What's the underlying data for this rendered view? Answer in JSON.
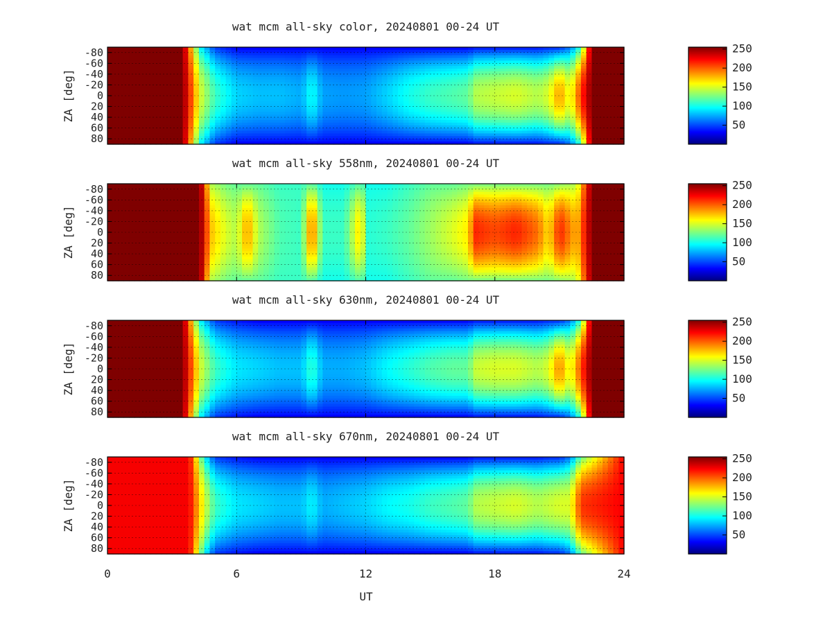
{
  "xlabel": "UT",
  "ylabel": "ZA [deg]",
  "x_ticks": [
    "0",
    "6",
    "12",
    "18",
    "24"
  ],
  "y_ticks": [
    "-80",
    "-60",
    "-40",
    "-20",
    "0",
    "20",
    "40",
    "60",
    "80"
  ],
  "colorbar_ticks": [
    "250",
    "200",
    "150",
    "100",
    "50"
  ],
  "colormap": "jet",
  "colors": {
    "jet_stops": [
      "#00007f",
      "#0000ff",
      "#007fff",
      "#00ffff",
      "#7fff7f",
      "#ffff00",
      "#ff7f00",
      "#ff0000",
      "#7f0000"
    ]
  },
  "chart_data": [
    {
      "type": "heatmap",
      "title": "wat mcm all-sky color, 20240801 00-24 UT",
      "xlabel": "",
      "ylabel": "ZA [deg]",
      "xlim": [
        0,
        24
      ],
      "ylim": [
        -90,
        90
      ],
      "zlim": [
        0,
        255
      ],
      "grid": true,
      "profile_ut": [
        0,
        3.5,
        4.3,
        5,
        6,
        7,
        8,
        9,
        9.5,
        10,
        11,
        12,
        13,
        14,
        15,
        16,
        16.8,
        17,
        18,
        19,
        20,
        20.5,
        21,
        21.5,
        22,
        22.5,
        24
      ],
      "zenith_value": [
        255,
        255,
        150,
        110,
        85,
        80,
        80,
        75,
        100,
        72,
        70,
        72,
        85,
        100,
        110,
        115,
        120,
        140,
        145,
        150,
        140,
        150,
        185,
        150,
        210,
        255,
        255
      ],
      "edge_value": [
        255,
        255,
        95,
        45,
        30,
        30,
        30,
        30,
        30,
        30,
        30,
        30,
        30,
        30,
        30,
        30,
        30,
        35,
        35,
        35,
        35,
        40,
        40,
        60,
        110,
        255,
        255
      ]
    },
    {
      "type": "heatmap",
      "title": "wat mcm all-sky 558nm, 20240801 00-24 UT",
      "xlabel": "",
      "ylabel": "ZA [deg]",
      "xlim": [
        0,
        24
      ],
      "ylim": [
        -90,
        90
      ],
      "zlim": [
        0,
        255
      ],
      "grid": true,
      "profile_ut": [
        0,
        4.3,
        4.8,
        5.5,
        6,
        6.5,
        7,
        8,
        9,
        9.5,
        10,
        11,
        11.8,
        12,
        13,
        14,
        15,
        16,
        16.8,
        17,
        18,
        19,
        20,
        20.5,
        21,
        21.8,
        22.5,
        24
      ],
      "zenith_value": [
        255,
        255,
        175,
        150,
        140,
        185,
        140,
        115,
        110,
        200,
        110,
        110,
        175,
        105,
        110,
        120,
        135,
        150,
        165,
        215,
        205,
        215,
        195,
        165,
        215,
        175,
        255,
        255
      ],
      "edge_value": [
        255,
        255,
        140,
        125,
        120,
        120,
        120,
        110,
        110,
        120,
        100,
        100,
        120,
        100,
        100,
        110,
        120,
        120,
        125,
        125,
        125,
        125,
        125,
        125,
        130,
        140,
        255,
        255
      ]
    },
    {
      "type": "heatmap",
      "title": "wat mcm all-sky 630nm, 20240801 00-24 UT",
      "xlabel": "",
      "ylabel": "ZA [deg]",
      "xlim": [
        0,
        24
      ],
      "ylim": [
        -90,
        90
      ],
      "zlim": [
        0,
        255
      ],
      "grid": true,
      "profile_ut": [
        0,
        3.5,
        4.3,
        5,
        6,
        7,
        8,
        9,
        9.5,
        10,
        11,
        12,
        13,
        14,
        15,
        16,
        16.8,
        17,
        18,
        19,
        20,
        20.5,
        21,
        21.5,
        22,
        22.5,
        24
      ],
      "zenith_value": [
        255,
        255,
        150,
        110,
        90,
        85,
        80,
        80,
        110,
        75,
        75,
        80,
        95,
        105,
        115,
        120,
        120,
        145,
        150,
        150,
        140,
        150,
        190,
        150,
        205,
        255,
        255
      ],
      "edge_value": [
        255,
        255,
        95,
        45,
        35,
        30,
        30,
        30,
        30,
        30,
        30,
        30,
        30,
        30,
        30,
        30,
        30,
        35,
        35,
        35,
        35,
        40,
        40,
        60,
        110,
        255,
        255
      ]
    },
    {
      "type": "heatmap",
      "title": "wat mcm all-sky 670nm, 20240801 00-24 UT",
      "xlabel": "UT",
      "ylabel": "ZA [deg]",
      "xlim": [
        0,
        24
      ],
      "ylim": [
        -90,
        90
      ],
      "zlim": [
        0,
        255
      ],
      "grid": true,
      "profile_ut": [
        0,
        3.8,
        4.5,
        5,
        6,
        7,
        8,
        9,
        9.5,
        10,
        11,
        12,
        13,
        14,
        15,
        16,
        16.8,
        17,
        18,
        19,
        20,
        20.5,
        21,
        21.5,
        22,
        24
      ],
      "zenith_value": [
        225,
        225,
        150,
        110,
        90,
        85,
        80,
        80,
        95,
        75,
        80,
        85,
        95,
        100,
        110,
        115,
        120,
        140,
        145,
        150,
        140,
        145,
        150,
        150,
        210,
        225
      ],
      "edge_value": [
        225,
        225,
        95,
        45,
        35,
        30,
        30,
        30,
        30,
        30,
        30,
        30,
        30,
        30,
        30,
        30,
        30,
        35,
        35,
        35,
        35,
        40,
        40,
        60,
        120,
        225
      ]
    }
  ]
}
